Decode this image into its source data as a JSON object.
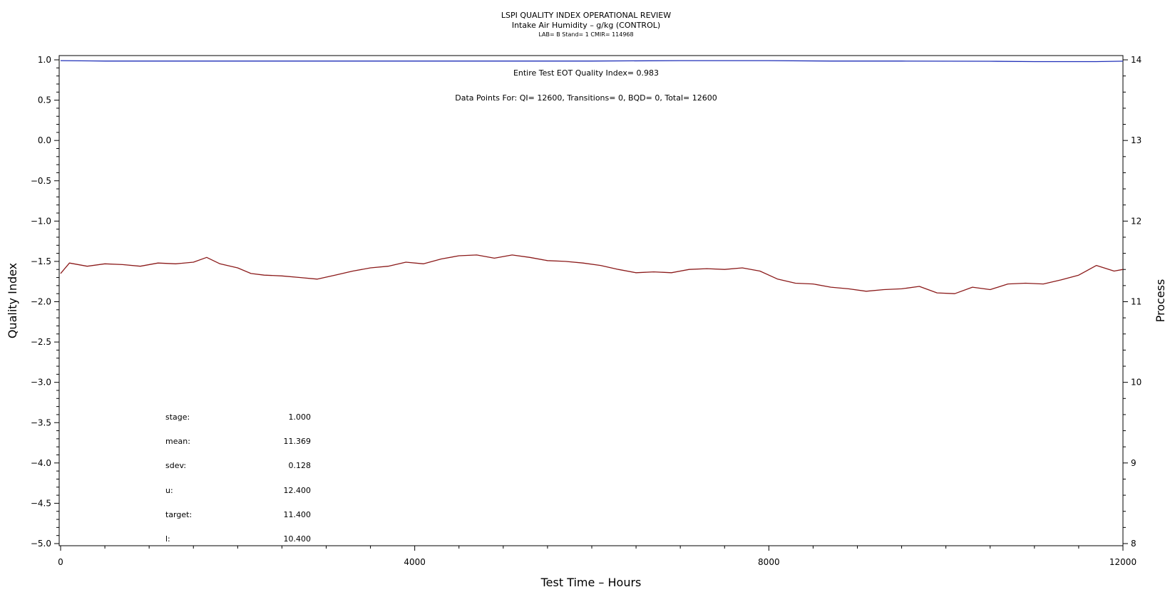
{
  "chart_data": {
    "type": "line",
    "title": "LSPI QUALITY INDEX OPERATIONAL REVIEW",
    "subtitle": "Intake Air Humidity – g/kg (CONTROL)",
    "sub_subtitle": "LAB= B Stand= 1 CMIR= 114968",
    "xlabel": "Test Time – Hours",
    "ylabel_left": "Quality Index",
    "ylabel_right": "Process",
    "xlim": [
      0,
      12000
    ],
    "ylim_left": [
      -5.0,
      1.0
    ],
    "ylim_right": [
      8,
      14
    ],
    "x_ticks": [
      "0",
      "4000",
      "8000",
      "12000"
    ],
    "y_left_ticks": [
      "1.0",
      "0.5",
      "0.0",
      "−0.5",
      "−1.0",
      "−1.5",
      "−2.0",
      "−2.5",
      "−3.0",
      "−3.5",
      "−4.0",
      "−4.5",
      "−5.0"
    ],
    "y_right_ticks": [
      "14",
      "13",
      "12",
      "11",
      "10",
      "9",
      "8"
    ],
    "annotations": {
      "quality_index": "Entire Test EOT Quality Index=   0.983",
      "data_points": "Data Points For: QI= 12600, Transitions=     0, BQD=     0, Total= 12600"
    },
    "series": [
      {
        "axis": "left",
        "color": "#1f2fb8",
        "x": [
          0,
          500,
          1000,
          2000,
          3000,
          4000,
          5000,
          6000,
          7000,
          8000,
          8700,
          9500,
          10500,
          11000,
          11700,
          12000
        ],
        "y": [
          0.99,
          0.985,
          0.985,
          0.985,
          0.985,
          0.985,
          0.985,
          0.985,
          0.99,
          0.99,
          0.985,
          0.985,
          0.982,
          0.978,
          0.978,
          0.983
        ]
      },
      {
        "axis": "right",
        "color": "#8b1a1a",
        "x": [
          0,
          100,
          300,
          500,
          700,
          900,
          1100,
          1300,
          1500,
          1650,
          1800,
          2000,
          2150,
          2300,
          2500,
          2700,
          2900,
          3100,
          3300,
          3500,
          3700,
          3900,
          4100,
          4300,
          4500,
          4700,
          4900,
          5100,
          5300,
          5500,
          5700,
          5900,
          6100,
          6300,
          6500,
          6700,
          6900,
          7100,
          7300,
          7500,
          7700,
          7900,
          8100,
          8300,
          8500,
          8700,
          8900,
          9100,
          9300,
          9500,
          9700,
          9900,
          10100,
          10300,
          10500,
          10700,
          10900,
          11100,
          11300,
          11500,
          11700,
          11900,
          12000
        ],
        "y": [
          11.35,
          11.48,
          11.44,
          11.47,
          11.46,
          11.44,
          11.48,
          11.47,
          11.49,
          11.55,
          11.47,
          11.42,
          11.35,
          11.33,
          11.32,
          11.3,
          11.28,
          11.33,
          11.38,
          11.42,
          11.44,
          11.49,
          11.47,
          11.53,
          11.57,
          11.58,
          11.54,
          11.58,
          11.55,
          11.51,
          11.5,
          11.48,
          11.45,
          11.4,
          11.36,
          11.37,
          11.36,
          11.4,
          11.41,
          11.4,
          11.42,
          11.38,
          11.28,
          11.23,
          11.22,
          11.18,
          11.16,
          11.13,
          11.15,
          11.16,
          11.19,
          11.11,
          11.1,
          11.18,
          11.15,
          11.22,
          11.23,
          11.22,
          11.27,
          11.33,
          11.45,
          11.38,
          11.4
        ]
      }
    ],
    "stats": [
      {
        "label": "stage:",
        "value": "1.000"
      },
      {
        "label": "mean:",
        "value": "11.369"
      },
      {
        "label": "sdev:",
        "value": "0.128"
      },
      {
        "label": "u:",
        "value": "12.400"
      },
      {
        "label": "target:",
        "value": "11.400"
      },
      {
        "label": "l:",
        "value": "10.400"
      }
    ]
  }
}
